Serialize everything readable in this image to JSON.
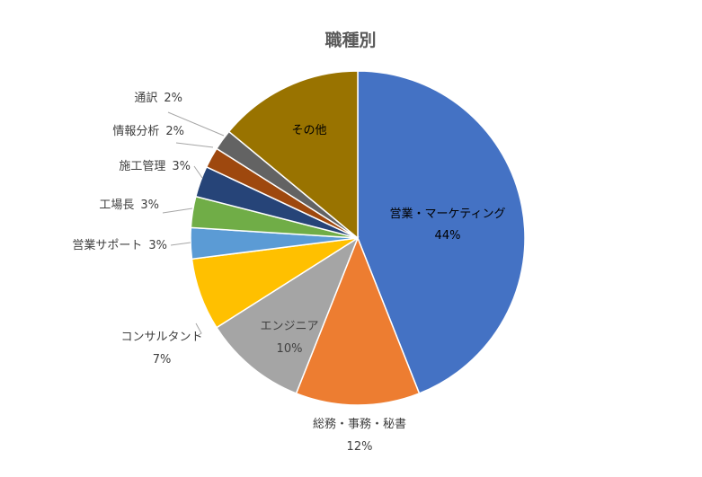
{
  "chart_data": {
    "type": "pie",
    "title": "職種別",
    "slices": [
      {
        "name": "営業・マーケティング",
        "value": 44,
        "value_label": "44%",
        "color": "#4472C4"
      },
      {
        "name": "総務・事務・秘書",
        "value": 12,
        "value_label": "12%",
        "color": "#ED7D31"
      },
      {
        "name": "エンジニア",
        "value": 10,
        "value_label": "10%",
        "color": "#A5A5A5"
      },
      {
        "name": "コンサルタント",
        "value": 7,
        "value_label": "7%",
        "color": "#FFC000"
      },
      {
        "name": "営業サポート",
        "value": 3,
        "value_label": "3%",
        "color": "#5B9BD5"
      },
      {
        "name": "工場長",
        "value": 3,
        "value_label": "3%",
        "color": "#70AD47"
      },
      {
        "name": "施工管理",
        "value": 3,
        "value_label": "3%",
        "color": "#264478"
      },
      {
        "name": "情報分析",
        "value": 2,
        "value_label": "2%",
        "color": "#9E480E"
      },
      {
        "name": "通訳",
        "value": 2,
        "value_label": "2%",
        "color": "#636363"
      },
      {
        "name": "その他",
        "value": 14,
        "value_label": "",
        "color": "#997300"
      }
    ],
    "start_angle": "12 o'clock",
    "direction": "clockwise",
    "legend": "none"
  }
}
